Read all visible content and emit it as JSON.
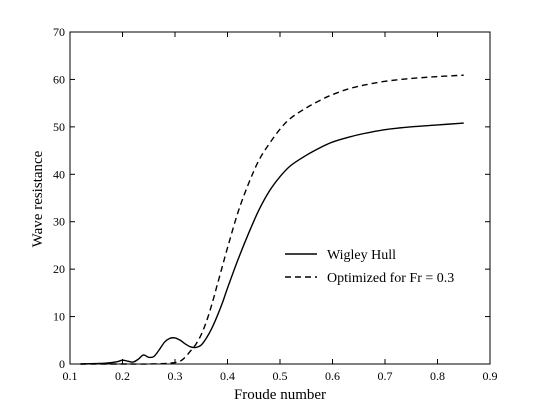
{
  "chart_data": {
    "type": "line",
    "title": "",
    "xlabel": "Froude number",
    "ylabel": "Wave resistance",
    "xlim": [
      0.1,
      0.9
    ],
    "ylim": [
      0,
      70
    ],
    "xticks": [
      0.1,
      0.2,
      0.3,
      0.4,
      0.5,
      0.6,
      0.7,
      0.8,
      0.9
    ],
    "yticks": [
      0,
      10,
      20,
      30,
      40,
      50,
      60,
      70
    ],
    "grid": false,
    "legend_position": "center-right",
    "series": [
      {
        "name": "Wigley Hull",
        "style": "solid",
        "color": "#000000",
        "x": [
          0.12,
          0.15,
          0.17,
          0.19,
          0.2,
          0.21,
          0.22,
          0.23,
          0.24,
          0.25,
          0.26,
          0.27,
          0.28,
          0.29,
          0.3,
          0.31,
          0.32,
          0.33,
          0.34,
          0.35,
          0.36,
          0.37,
          0.38,
          0.39,
          0.4,
          0.42,
          0.44,
          0.46,
          0.48,
          0.5,
          0.52,
          0.55,
          0.58,
          0.6,
          0.63,
          0.66,
          0.7,
          0.75,
          0.8,
          0.85
        ],
        "y": [
          0.0,
          0.1,
          0.2,
          0.5,
          0.8,
          0.6,
          0.4,
          1.0,
          1.9,
          1.4,
          1.6,
          3.0,
          4.6,
          5.4,
          5.5,
          5.0,
          4.2,
          3.6,
          3.5,
          4.0,
          5.5,
          7.5,
          10.0,
          12.8,
          16.0,
          22.0,
          27.5,
          32.5,
          36.5,
          39.5,
          41.8,
          44.0,
          45.8,
          46.8,
          47.8,
          48.6,
          49.4,
          50.0,
          50.4,
          50.8
        ]
      },
      {
        "name": "Optimized for Fr = 0.3",
        "style": "dashed",
        "color": "#000000",
        "x": [
          0.12,
          0.2,
          0.25,
          0.28,
          0.3,
          0.31,
          0.32,
          0.33,
          0.34,
          0.35,
          0.36,
          0.37,
          0.38,
          0.39,
          0.4,
          0.42,
          0.44,
          0.46,
          0.48,
          0.5,
          0.52,
          0.55,
          0.58,
          0.6,
          0.63,
          0.66,
          0.7,
          0.75,
          0.8,
          0.85
        ],
        "y": [
          0.0,
          0.0,
          0.0,
          0.1,
          0.3,
          0.6,
          1.5,
          2.8,
          4.2,
          6.2,
          9.0,
          12.5,
          16.5,
          20.5,
          24.5,
          32.0,
          38.0,
          43.0,
          46.5,
          49.5,
          51.8,
          54.0,
          55.8,
          56.8,
          58.0,
          58.8,
          59.6,
          60.2,
          60.6,
          60.9
        ]
      }
    ]
  }
}
